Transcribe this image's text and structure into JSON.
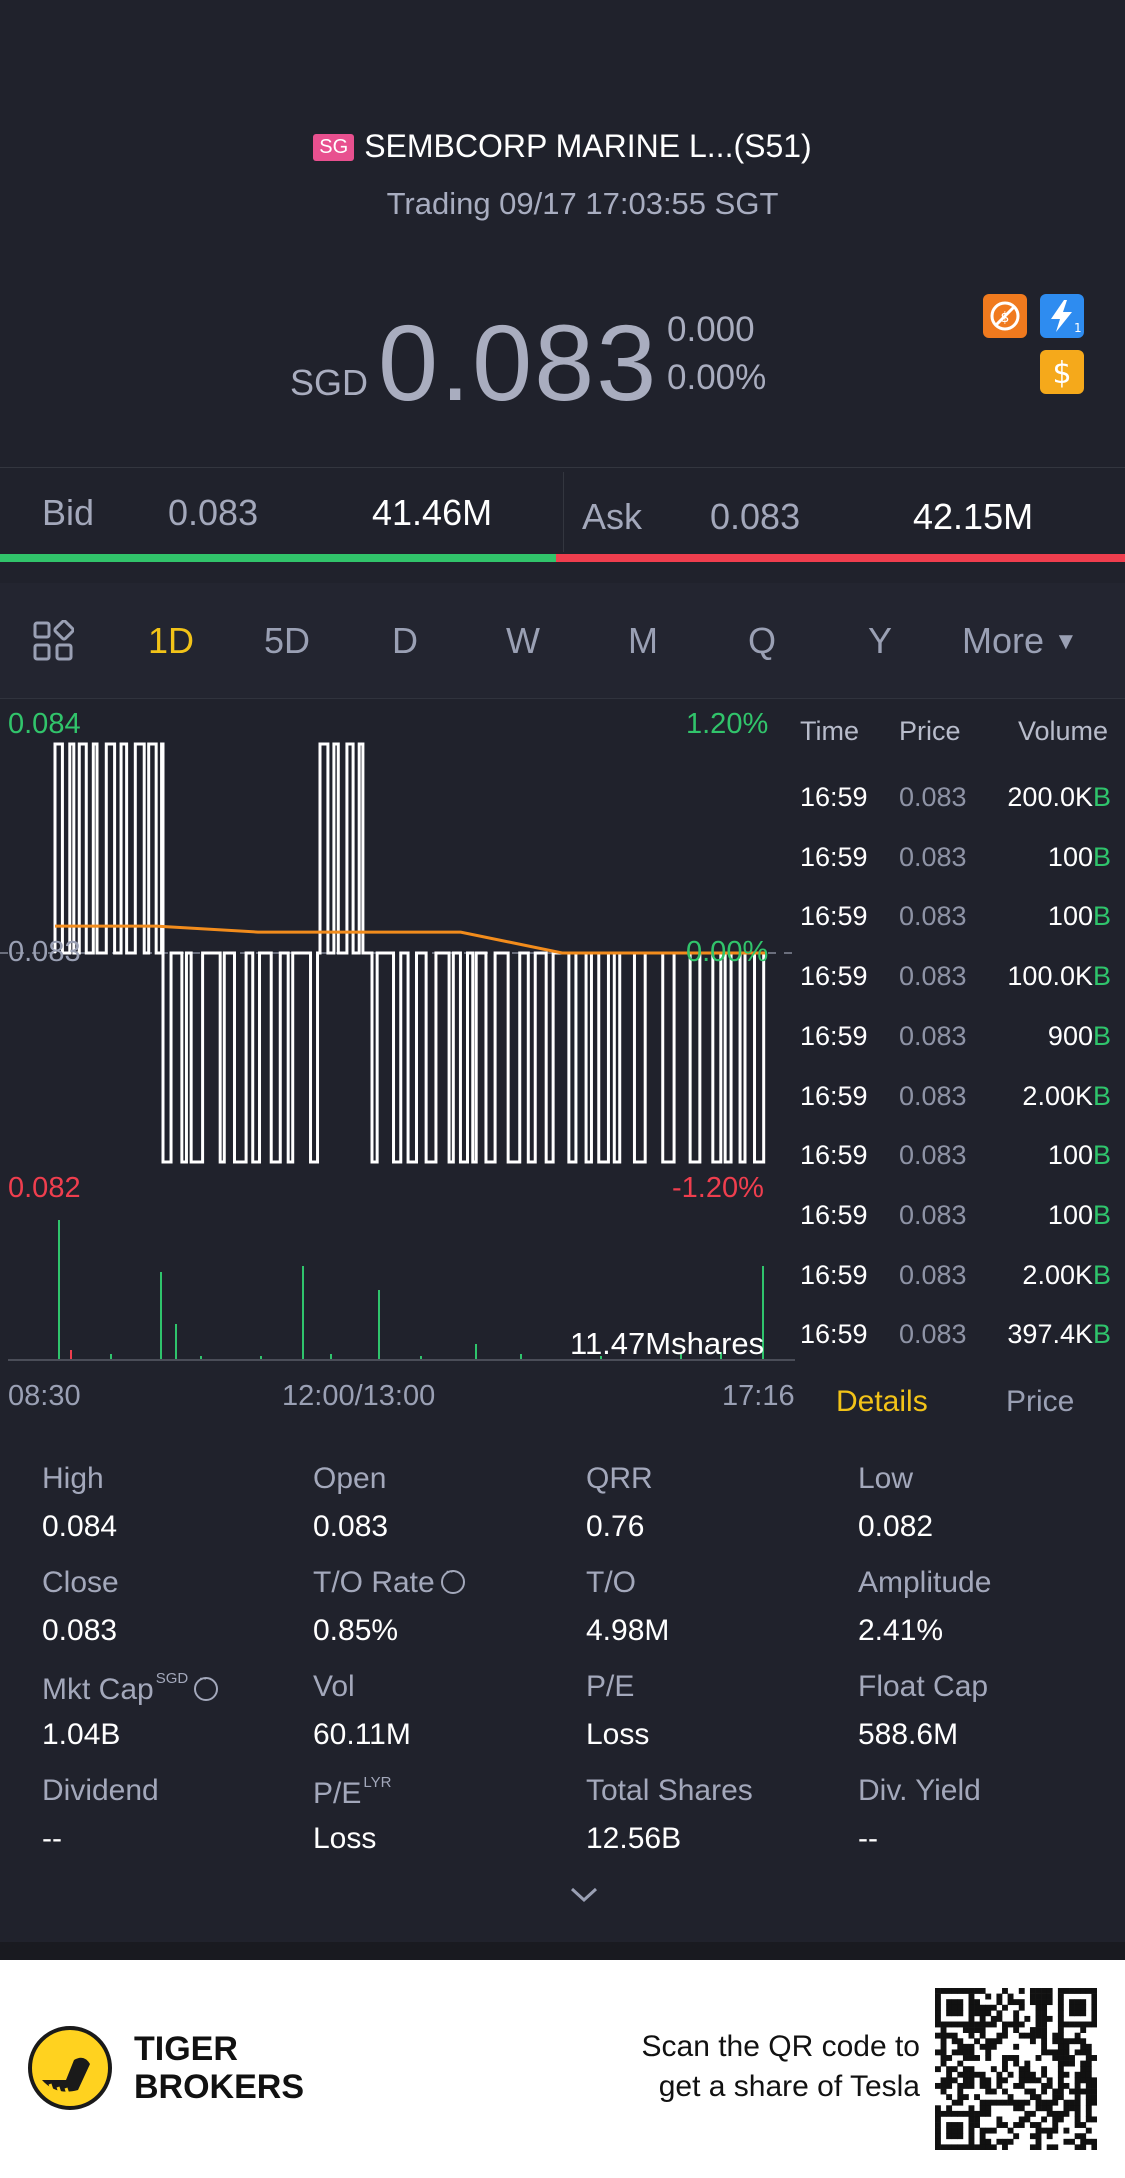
{
  "header": {
    "badge": "SG",
    "title": "SEMBCORP MARINE L...(S51)",
    "status": "Trading 09/17 17:03:55 SGT",
    "currency": "SGD",
    "price": "0.083",
    "change": "0.000",
    "change_pct": "0.00%"
  },
  "quote": {
    "bid_label": "Bid",
    "bid_price": "0.083",
    "bid_size": "41.46M",
    "ask_label": "Ask",
    "ask_price": "0.083",
    "ask_size": "42.15M"
  },
  "tabs": [
    "1D",
    "5D",
    "D",
    "W",
    "M",
    "Q",
    "Y",
    "More"
  ],
  "active_tab": "1D",
  "chart": {
    "y_high": "0.084",
    "y_mid": "0.083",
    "y_low": "0.082",
    "pct_high": "1.20%",
    "pct_mid": "0.00%",
    "pct_low": "-1.20%",
    "volume_label": "11.47Mshares",
    "x_start": "08:30",
    "x_mid": "12:00/13:00",
    "x_end": "17:16"
  },
  "chart_data": {
    "type": "line",
    "title": "",
    "ylim": [
      0.082,
      0.084
    ],
    "x_ticks": [
      "08:30",
      "12:00/13:00",
      "17:16"
    ],
    "series": [
      {
        "values": [
          0.083,
          0.084,
          0.083,
          0.084,
          0.083,
          0.084,
          0.083,
          0.084,
          0.083,
          0.082,
          0.083,
          0.082,
          0.083,
          0.082,
          0.083,
          0.084,
          0.083,
          0.084,
          0.083,
          0.082,
          0.083,
          0.082,
          0.083,
          0.082,
          0.083,
          0.082,
          0.083,
          0.082,
          0.083
        ]
      },
      {
        "values": [
          0.0831,
          0.0831,
          0.0831,
          0.0831,
          0.0831,
          0.083,
          0.083,
          0.083
        ]
      }
    ]
  },
  "ticks": {
    "headers": [
      "Time",
      "Price",
      "Volume"
    ],
    "rows": [
      {
        "time": "16:59",
        "price": "0.083",
        "vol": "200.0K",
        "side": "B"
      },
      {
        "time": "16:59",
        "price": "0.083",
        "vol": "100",
        "side": "B"
      },
      {
        "time": "16:59",
        "price": "0.083",
        "vol": "100",
        "side": "B"
      },
      {
        "time": "16:59",
        "price": "0.083",
        "vol": "100.0K",
        "side": "B"
      },
      {
        "time": "16:59",
        "price": "0.083",
        "vol": "900",
        "side": "B"
      },
      {
        "time": "16:59",
        "price": "0.083",
        "vol": "2.00K",
        "side": "B"
      },
      {
        "time": "16:59",
        "price": "0.083",
        "vol": "100",
        "side": "B"
      },
      {
        "time": "16:59",
        "price": "0.083",
        "vol": "100",
        "side": "B"
      },
      {
        "time": "16:59",
        "price": "0.083",
        "vol": "2.00K",
        "side": "B"
      },
      {
        "time": "16:59",
        "price": "0.083",
        "vol": "397.4K",
        "side": "B"
      }
    ],
    "tab_details": "Details",
    "tab_price": "Price"
  },
  "stats": {
    "high_l": "High",
    "high_v": "0.084",
    "open_l": "Open",
    "open_v": "0.083",
    "qrr_l": "QRR",
    "qrr_v": "0.76",
    "low_l": "Low",
    "low_v": "0.082",
    "close_l": "Close",
    "close_v": "0.083",
    "to_rate_l": "T/O Rate",
    "to_rate_v": "0.85%",
    "to_l": "T/O",
    "to_v": "4.98M",
    "amp_l": "Amplitude",
    "amp_v": "2.41%",
    "mktcap_l": "Mkt Cap",
    "mktcap_sup": "SGD",
    "mktcap_v": "1.04B",
    "vol_l": "Vol",
    "vol_v": "60.11M",
    "pe_l": "P/E",
    "pe_v": "Loss",
    "float_l": "Float Cap",
    "float_v": "588.6M",
    "div_l": "Dividend",
    "div_v": "--",
    "pe_lyr_l": "P/E",
    "pe_lyr_sup": "LYR",
    "pe_lyr_v": "Loss",
    "total_l": "Total Shares",
    "total_v": "12.56B",
    "divy_l": "Div. Yield",
    "divy_v": "--"
  },
  "footer": {
    "brand1": "TIGER",
    "brand2": "BROKERS",
    "promo1": "Scan the QR code to",
    "promo2": "get a share of Tesla"
  },
  "colors": {
    "up": "#2fc46c",
    "down": "#ef3e4e",
    "accent": "#f2c318",
    "avg": "#f28c1c"
  }
}
